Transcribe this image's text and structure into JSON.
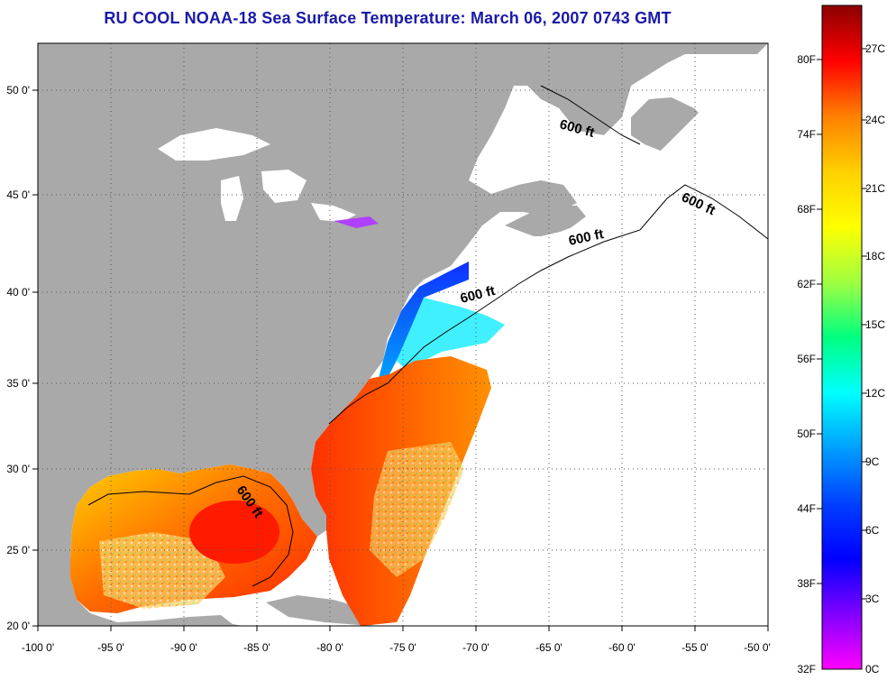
{
  "title": "RU COOL  NOAA-18  Sea Surface Temperature:  March 06, 2007 0743 GMT",
  "map": {
    "lon_ticks": [
      "-100 0'",
      "-95 0'",
      "-90 0'",
      "-85 0'",
      "-80 0'",
      "-75 0'",
      "-70 0'",
      "-65 0'",
      "-60 0'",
      "-55 0'",
      "-50 0'"
    ],
    "lat_ticks": [
      "50 0'",
      "45 0'",
      "40 0'",
      "35 0'",
      "30 0'",
      "25 0'",
      "20 0'"
    ],
    "contour_label": "600 ft",
    "colors": {
      "land": "#a9a9a9",
      "no_data": "#ffffff",
      "grid": "#555555"
    }
  },
  "colorbar": {
    "fahrenheit_labels": [
      "80F",
      "74F",
      "68F",
      "62F",
      "56F",
      "50F",
      "44F",
      "38F",
      "32F"
    ],
    "celsius_labels": [
      "27C",
      "24C",
      "21C",
      "18C",
      "15C",
      "12C",
      "9C",
      "6C",
      "3C",
      "0C"
    ],
    "colors": [
      "#8b0000",
      "#ff0000",
      "#ff8000",
      "#ffd000",
      "#ffff00",
      "#a0ff40",
      "#00ff80",
      "#00ffff",
      "#00a0ff",
      "#0040ff",
      "#0000ff",
      "#8000ff",
      "#ff00ff"
    ]
  }
}
